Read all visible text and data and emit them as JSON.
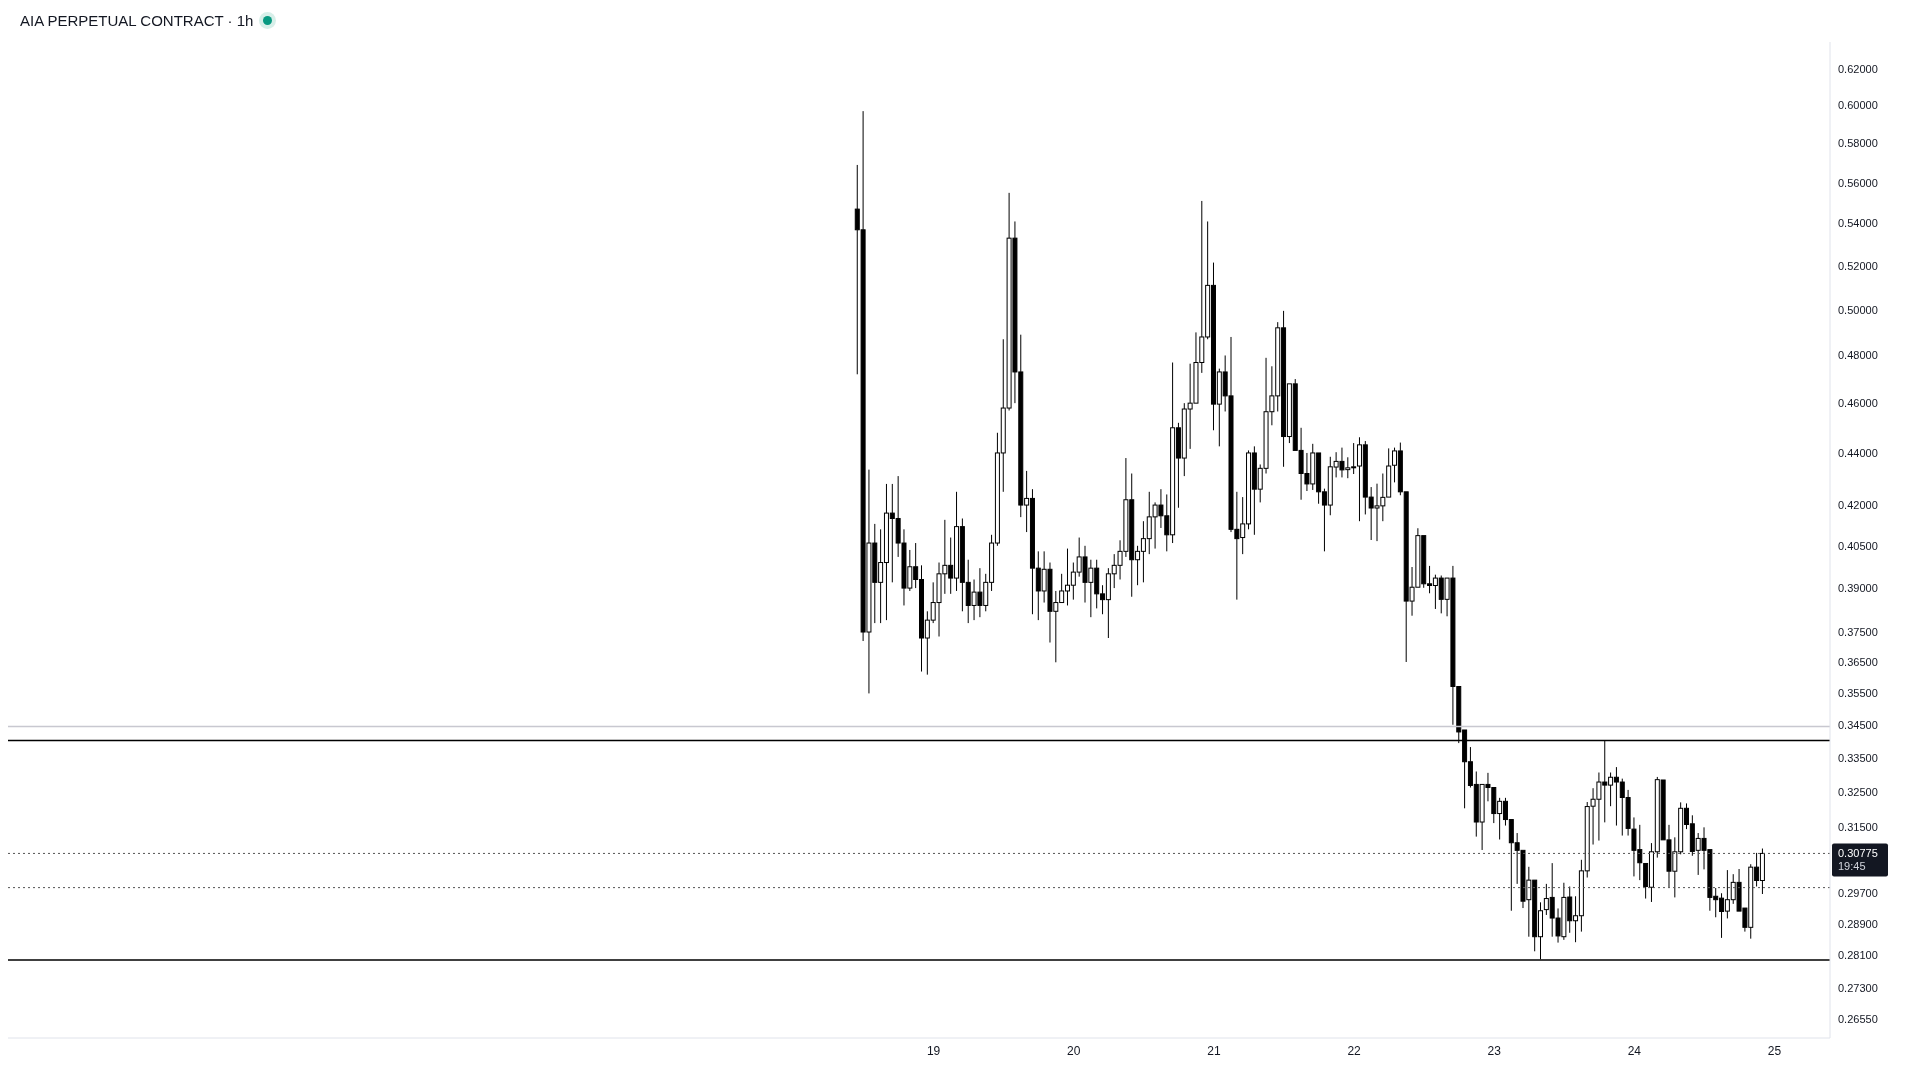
{
  "chart_data": {
    "type": "candlestick",
    "title": "AIA PERPETUAL CONTRACT · 1h",
    "color": "#000000",
    "log": "y",
    "grid": false,
    "legend": false,
    "categories": [
      null,
      null,
      null,
      null,
      null,
      null,
      null,
      null,
      null,
      null,
      null,
      null,
      null,
      null,
      null,
      null,
      null,
      null,
      null,
      null,
      null,
      null,
      null,
      null,
      null,
      null,
      null,
      null,
      null,
      null,
      null,
      null,
      null,
      null,
      null,
      null,
      null,
      null,
      null,
      null,
      null,
      null,
      null,
      null,
      null,
      null,
      null,
      null,
      null,
      null,
      null,
      null,
      null,
      null,
      null,
      null,
      null,
      null,
      null,
      null,
      null,
      null,
      null,
      null,
      null,
      null,
      null,
      null,
      null,
      null,
      null,
      null,
      null,
      null,
      null,
      null,
      null,
      null,
      null,
      null,
      null,
      null,
      null,
      null,
      null,
      null,
      null,
      null,
      null,
      null,
      null,
      null,
      null,
      null,
      null,
      null,
      null,
      null,
      null,
      null,
      null,
      null,
      null,
      null,
      null,
      null,
      null,
      null,
      null,
      null,
      null,
      null,
      null,
      null,
      null,
      null,
      null,
      null,
      null,
      null,
      null,
      null,
      null,
      null,
      null,
      null,
      null,
      null,
      null,
      null,
      null,
      null,
      null,
      null,
      null,
      null,
      null,
      null,
      null,
      null,
      null,
      null,
      null,
      null,
      null,
      null,
      null,
      null,
      null,
      null,
      null,
      null,
      null,
      null,
      null,
      null,
      null,
      null,
      "19",
      null,
      null,
      null,
      null,
      null,
      null,
      null,
      null,
      null,
      null,
      null,
      null,
      null,
      null,
      null,
      null,
      null,
      null,
      null,
      null,
      null,
      null,
      null,
      "20",
      null,
      null,
      null,
      null,
      null,
      null,
      null,
      null,
      null,
      null,
      null,
      null,
      null,
      null,
      null,
      null,
      null,
      null,
      null,
      null,
      null,
      null,
      null,
      "21",
      null,
      null,
      null,
      null,
      null,
      null,
      null,
      null,
      null,
      null,
      null,
      null,
      null,
      null,
      null,
      null,
      null,
      null,
      null,
      null,
      null,
      null,
      null,
      "22",
      null,
      null,
      null,
      null,
      null,
      null,
      null,
      null,
      null,
      null,
      null,
      null,
      null,
      null,
      null,
      null,
      null,
      null,
      null,
      null,
      null,
      null,
      null,
      "23",
      null,
      null,
      null,
      null,
      null,
      null,
      null,
      null,
      null,
      null,
      null,
      null,
      null,
      null,
      null,
      null,
      null,
      null,
      null,
      null,
      null,
      null,
      null,
      "24",
      null,
      null,
      null,
      null,
      null,
      null,
      null,
      null,
      null,
      null,
      null,
      null,
      null,
      null,
      null,
      null,
      null,
      null,
      null,
      null,
      null,
      null,
      null,
      "25",
      null,
      null,
      null,
      null,
      null,
      null,
      null,
      null,
      null
    ],
    "ylim": [
      0.261,
      0.635
    ],
    "yticks": [
      {
        "value": 0.62,
        "label": "0.62000"
      },
      {
        "value": 0.6,
        "label": "0.60000"
      },
      {
        "value": 0.58,
        "label": "0.58000"
      },
      {
        "value": 0.56,
        "label": "0.56000"
      },
      {
        "value": 0.54,
        "label": "0.54000"
      },
      {
        "value": 0.52,
        "label": "0.52000"
      },
      {
        "value": 0.5,
        "label": "0.50000"
      },
      {
        "value": 0.48,
        "label": "0.48000"
      },
      {
        "value": 0.46,
        "label": "0.46000"
      },
      {
        "value": 0.44,
        "label": "0.44000"
      },
      {
        "value": 0.42,
        "label": "0.42000"
      },
      {
        "value": 0.405,
        "label": "0.40500"
      },
      {
        "value": 0.39,
        "label": "0.39000"
      },
      {
        "value": 0.375,
        "label": "0.37500"
      },
      {
        "value": 0.365,
        "label": "0.36500"
      },
      {
        "value": 0.355,
        "label": "0.35500"
      },
      {
        "value": 0.345,
        "label": "0.34500"
      },
      {
        "value": 0.335,
        "label": "0.33500"
      },
      {
        "value": 0.325,
        "label": "0.32500"
      },
      {
        "value": 0.315,
        "label": "0.31500"
      },
      {
        "value": 0.297,
        "label": "0.29700"
      },
      {
        "value": 0.289,
        "label": "0.28900"
      },
      {
        "value": 0.281,
        "label": "0.28100"
      },
      {
        "value": 0.273,
        "label": "0.27300"
      },
      {
        "value": 0.2655,
        "label": "0.26550"
      }
    ],
    "ref_lines": [
      {
        "axis": "y",
        "value": 0.3404,
        "color": "#000000",
        "line_style": "solid"
      },
      {
        "axis": "y",
        "value": 0.2798,
        "color": "#000000",
        "line_style": "solid"
      },
      {
        "axis": "y",
        "value": 0.3447,
        "color": "#c8c8d0",
        "line_style": "solid"
      },
      {
        "axis": "y",
        "value": 0.2985,
        "color": "#555555",
        "line_style": "dotted"
      },
      {
        "axis": "y",
        "value": 0.30775,
        "color": "#555555",
        "line_style": "dotted",
        "label": "0.30775"
      }
    ],
    "annotations": [
      "19:45"
    ],
    "ohlc": [
      null,
      null,
      null,
      null,
      null,
      null,
      null,
      null,
      null,
      null,
      null,
      null,
      null,
      null,
      null,
      null,
      null,
      null,
      null,
      null,
      null,
      null,
      null,
      null,
      null,
      null,
      null,
      null,
      null,
      null,
      null,
      null,
      null,
      null,
      null,
      null,
      null,
      null,
      null,
      null,
      null,
      null,
      null,
      null,
      null,
      null,
      null,
      null,
      null,
      null,
      null,
      null,
      null,
      null,
      null,
      null,
      null,
      null,
      null,
      null,
      null,
      null,
      null,
      null,
      null,
      null,
      null,
      null,
      null,
      null,
      null,
      null,
      null,
      null,
      null,
      null,
      null,
      null,
      null,
      null,
      null,
      null,
      null,
      null,
      null,
      null,
      null,
      null,
      null,
      null,
      null,
      null,
      null,
      null,
      null,
      null,
      null,
      null,
      null,
      null,
      null,
      null,
      null,
      null,
      null,
      null,
      null,
      null,
      null,
      null,
      null,
      null,
      null,
      null,
      null,
      null,
      null,
      null,
      null,
      null,
      null,
      null,
      null,
      null,
      null,
      null,
      null,
      null,
      null,
      null,
      null,
      null,
      null,
      null,
      null,
      null,
      null,
      null,
      null,
      null,
      null,
      null,
      null,
      null,
      null,
      [
        0.547,
        0.569,
        0.472,
        0.537
      ],
      [
        0.537,
        0.597,
        0.372,
        0.375
      ],
      [
        0.375,
        0.4335,
        0.355,
        0.406
      ],
      [
        0.406,
        0.413,
        0.378,
        0.392
      ],
      [
        0.392,
        0.411,
        0.378,
        0.399
      ],
      [
        0.399,
        0.428,
        0.379,
        0.417
      ],
      [
        0.417,
        0.428,
        0.392,
        0.415
      ],
      [
        0.415,
        0.431,
        0.401,
        0.406
      ],
      [
        0.406,
        0.411,
        0.384,
        0.39
      ],
      [
        0.39,
        0.4035,
        0.389,
        0.3975
      ],
      [
        0.3975,
        0.406,
        0.39,
        0.393
      ],
      [
        0.393,
        0.398,
        0.362,
        0.373
      ],
      [
        0.373,
        0.382,
        0.361,
        0.379
      ],
      [
        0.379,
        0.392,
        0.378,
        0.385
      ],
      [
        0.385,
        0.399,
        0.3735,
        0.395
      ],
      [
        0.395,
        0.4145,
        0.388,
        0.398
      ],
      [
        0.398,
        0.408,
        0.388,
        0.3935
      ],
      [
        0.3935,
        0.425,
        0.389,
        0.412
      ],
      [
        0.412,
        0.415,
        0.382,
        0.392
      ],
      [
        0.392,
        0.4,
        0.378,
        0.384
      ],
      [
        0.384,
        0.393,
        0.379,
        0.3886
      ],
      [
        0.3886,
        0.397,
        0.38,
        0.384
      ],
      [
        0.384,
        0.395,
        0.382,
        0.392
      ],
      [
        0.392,
        0.409,
        0.389,
        0.406
      ],
      [
        0.406,
        0.448,
        0.405,
        0.44
      ],
      [
        0.44,
        0.487,
        0.425,
        0.458
      ],
      [
        0.458,
        0.555,
        0.457,
        0.533
      ],
      [
        0.533,
        0.541,
        0.46,
        0.473
      ],
      [
        0.473,
        0.489,
        0.4155,
        0.42
      ],
      [
        0.42,
        0.433,
        0.41,
        0.4225
      ],
      [
        0.4225,
        0.426,
        0.381,
        0.397
      ],
      [
        0.397,
        0.403,
        0.379,
        0.389
      ],
      [
        0.389,
        0.403,
        0.385,
        0.3966
      ],
      [
        0.3966,
        0.399,
        0.3715,
        0.382
      ],
      [
        0.382,
        0.389,
        0.365,
        0.385
      ],
      [
        0.385,
        0.395,
        0.385,
        0.389
      ],
      [
        0.389,
        0.404,
        0.384,
        0.391
      ],
      [
        0.391,
        0.399,
        0.386,
        0.3956
      ],
      [
        0.3956,
        0.408,
        0.394,
        0.401
      ],
      [
        0.401,
        0.405,
        0.385,
        0.392
      ],
      [
        0.392,
        0.4,
        0.38,
        0.397
      ],
      [
        0.397,
        0.4,
        0.383,
        0.388
      ],
      [
        0.388,
        0.391,
        0.381,
        0.386
      ],
      [
        0.386,
        0.397,
        0.373,
        0.395
      ],
      [
        0.395,
        0.402,
        0.39,
        0.398
      ],
      [
        0.398,
        0.407,
        0.393,
        0.403
      ],
      [
        0.403,
        0.438,
        0.401,
        0.422
      ],
      [
        0.422,
        0.432,
        0.387,
        0.4
      ],
      [
        0.4,
        0.405,
        0.391,
        0.403
      ],
      [
        0.403,
        0.414,
        0.392,
        0.4076
      ],
      [
        0.4076,
        0.425,
        0.402,
        0.4156
      ],
      [
        0.4156,
        0.421,
        0.404,
        0.42
      ],
      [
        0.42,
        0.426,
        0.4115,
        0.416
      ],
      [
        0.416,
        0.424,
        0.403,
        0.409
      ],
      [
        0.409,
        0.477,
        0.406,
        0.45
      ],
      [
        0.45,
        0.452,
        0.419,
        0.438
      ],
      [
        0.438,
        0.46,
        0.431,
        0.4576
      ],
      [
        0.4576,
        0.4765,
        0.4416,
        0.46
      ],
      [
        0.46,
        0.49,
        0.46,
        0.477
      ],
      [
        0.477,
        0.551,
        0.4726,
        0.488
      ],
      [
        0.488,
        0.541,
        0.487,
        0.511
      ],
      [
        0.511,
        0.5215,
        0.449,
        0.4596
      ],
      [
        0.4596,
        0.4744,
        0.4426,
        0.473
      ],
      [
        0.473,
        0.48,
        0.4566,
        0.463
      ],
      [
        0.463,
        0.488,
        0.41,
        0.411
      ],
      [
        0.411,
        0.425,
        0.386,
        0.4076
      ],
      [
        0.408,
        0.423,
        0.402,
        0.413
      ],
      [
        0.413,
        0.441,
        0.411,
        0.44
      ],
      [
        0.44,
        0.4426,
        0.409,
        0.426
      ],
      [
        0.426,
        0.4355,
        0.421,
        0.434
      ],
      [
        0.434,
        0.479,
        0.432,
        0.4565
      ],
      [
        0.4565,
        0.4754,
        0.451,
        0.463
      ],
      [
        0.463,
        0.4945,
        0.4566,
        0.492
      ],
      [
        0.492,
        0.4995,
        0.4346,
        0.4465
      ],
      [
        0.4465,
        0.4688,
        0.4439,
        0.468
      ],
      [
        0.468,
        0.47,
        0.4405,
        0.441
      ],
      [
        0.441,
        0.45,
        0.422,
        0.432
      ],
      [
        0.432,
        0.44,
        0.4253,
        0.428
      ],
      [
        0.428,
        0.4436,
        0.4257,
        0.44
      ],
      [
        0.44,
        0.4405,
        0.4205,
        0.425
      ],
      [
        0.425,
        0.4262,
        0.403,
        0.42
      ],
      [
        0.42,
        0.4385,
        0.4162,
        0.4346
      ],
      [
        0.4345,
        0.4403,
        0.4305,
        0.4367
      ],
      [
        0.4367,
        0.4421,
        0.4305,
        0.4334
      ],
      [
        0.4335,
        0.4383,
        0.4302,
        0.4342
      ],
      [
        0.4343,
        0.4439,
        0.4318,
        0.4346
      ],
      [
        0.4349,
        0.4462,
        0.414,
        0.4432
      ],
      [
        0.4432,
        0.4447,
        0.4165,
        0.423
      ],
      [
        0.423,
        0.4268,
        0.4071,
        0.4189
      ],
      [
        0.4189,
        0.4281,
        0.4067,
        0.4197
      ],
      [
        0.4197,
        0.432,
        0.414,
        0.4229
      ],
      [
        0.423,
        0.4418,
        0.423,
        0.4349
      ],
      [
        0.4352,
        0.4421,
        0.4286,
        0.4408
      ],
      [
        0.4408,
        0.4441,
        0.4237,
        0.425
      ],
      [
        0.425,
        0.425,
        0.3651,
        0.3855
      ],
      [
        0.3855,
        0.3974,
        0.3805,
        0.3903
      ],
      [
        0.3903,
        0.4114,
        0.39,
        0.4087
      ],
      [
        0.4087,
        0.4091,
        0.3901,
        0.3915
      ],
      [
        0.3915,
        0.3978,
        0.3882,
        0.3909
      ],
      [
        0.3909,
        0.3947,
        0.3828,
        0.3935
      ],
      [
        0.3935,
        0.3944,
        0.3813,
        0.3861
      ],
      [
        0.3861,
        0.3941,
        0.3803,
        0.3935
      ],
      [
        0.3935,
        0.3978,
        0.3452,
        0.3572
      ],
      [
        0.3572,
        0.3572,
        0.3396,
        0.343
      ],
      [
        0.3436,
        0.3439,
        0.3204,
        0.334
      ],
      [
        0.334,
        0.3384,
        0.3264,
        0.327
      ],
      [
        0.3273,
        0.3311,
        0.3124,
        0.3165
      ],
      [
        0.3165,
        0.3277,
        0.3087,
        0.3273
      ],
      [
        0.3273,
        0.3307,
        0.3224,
        0.3264
      ],
      [
        0.3264,
        0.3264,
        0.3162,
        0.3189
      ],
      [
        0.3189,
        0.3234,
        0.3116,
        0.3224
      ],
      [
        0.3224,
        0.3234,
        0.3155,
        0.3172
      ],
      [
        0.3172,
        0.3175,
        0.2924,
        0.3107
      ],
      [
        0.3107,
        0.3134,
        0.2995,
        0.3086
      ],
      [
        0.3086,
        0.3091,
        0.2931,
        0.2949
      ],
      [
        0.2953,
        0.3041,
        0.2857,
        0.3005
      ],
      [
        0.3005,
        0.301,
        0.282,
        0.2857
      ],
      [
        0.2857,
        0.2946,
        0.28,
        0.2924
      ],
      [
        0.2927,
        0.2995,
        0.2913,
        0.2956
      ],
      [
        0.2959,
        0.3051,
        0.2857,
        0.2905
      ],
      [
        0.2905,
        0.293,
        0.2842,
        0.2859
      ],
      [
        0.2857,
        0.2998,
        0.2849,
        0.2959
      ],
      [
        0.296,
        0.2988,
        0.2867,
        0.2898
      ],
      [
        0.2898,
        0.2962,
        0.2843,
        0.2911
      ],
      [
        0.2911,
        0.306,
        0.287,
        0.303
      ],
      [
        0.303,
        0.3222,
        0.3012,
        0.3209
      ],
      [
        0.321,
        0.3262,
        0.3102,
        0.323
      ],
      [
        0.323,
        0.3308,
        0.3113,
        0.328
      ],
      [
        0.328,
        0.3405,
        0.3164,
        0.3271
      ],
      [
        0.3271,
        0.3308,
        0.321,
        0.3294
      ],
      [
        0.3294,
        0.3324,
        0.3155,
        0.328
      ],
      [
        0.328,
        0.329,
        0.3127,
        0.3235
      ],
      [
        0.3235,
        0.3257,
        0.3127,
        0.3147
      ],
      [
        0.3145,
        0.3178,
        0.3015,
        0.3086
      ],
      [
        0.3088,
        0.3157,
        0.3005,
        0.3052
      ],
      [
        0.305,
        0.3054,
        0.2956,
        0.2988
      ],
      [
        0.2986,
        0.3106,
        0.2947,
        0.3082
      ],
      [
        0.3082,
        0.3295,
        0.3066,
        0.3287
      ],
      [
        0.3286,
        0.3291,
        0.3115,
        0.3115
      ],
      [
        0.3115,
        0.3157,
        0.2986,
        0.3029
      ],
      [
        0.3029,
        0.3122,
        0.2959,
        0.3082
      ],
      [
        0.3082,
        0.3221,
        0.3075,
        0.3204
      ],
      [
        0.3204,
        0.3218,
        0.3145,
        0.3158
      ],
      [
        0.316,
        0.3184,
        0.3071,
        0.3083
      ],
      [
        0.3086,
        0.3134,
        0.3019,
        0.3119
      ],
      [
        0.3119,
        0.315,
        0.3034,
        0.3086
      ],
      [
        0.3088,
        0.3088,
        0.2924,
        0.2959
      ],
      [
        0.2962,
        0.2984,
        0.2907,
        0.2953
      ],
      [
        0.2957,
        0.297,
        0.2854,
        0.2922
      ],
      [
        0.2923,
        0.3032,
        0.2904,
        0.2953
      ],
      [
        0.2953,
        0.3021,
        0.2942,
        0.2999
      ],
      [
        0.2999,
        0.3035,
        0.292,
        0.2923
      ],
      [
        0.2931,
        0.2933,
        0.287,
        0.2881
      ],
      [
        0.2881,
        0.3048,
        0.2852,
        0.304
      ],
      [
        0.304,
        0.3079,
        0.2988,
        0.3004
      ],
      [
        0.3004,
        0.3091,
        0.2968,
        0.30775
      ],
      null,
      null,
      null,
      null,
      null,
      null,
      null,
      null,
      null,
      null,
      null
    ]
  }
}
